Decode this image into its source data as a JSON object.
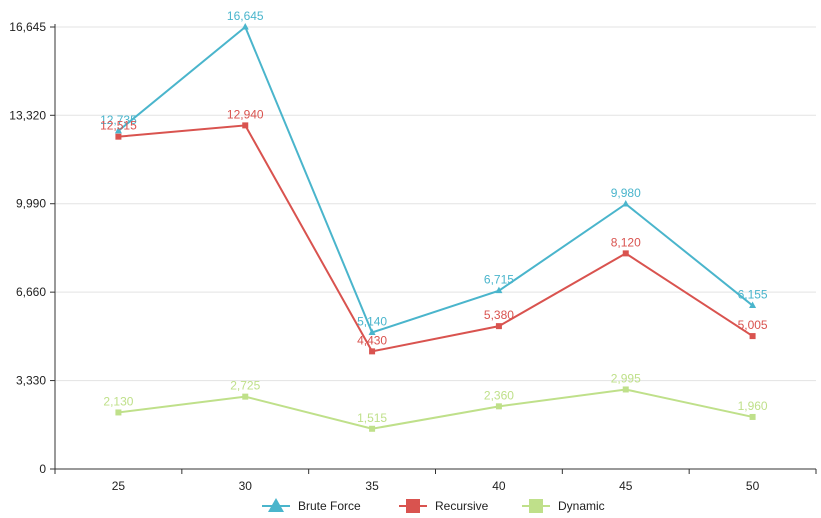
{
  "chart_data": {
    "type": "line",
    "title": "",
    "xlabel": "",
    "ylabel": "",
    "categories": [
      "25",
      "30",
      "35",
      "40",
      "45",
      "50"
    ],
    "y_ticks": [
      0,
      3330,
      6660,
      9990,
      13320,
      16645
    ],
    "y_tick_labels": [
      "0",
      "3,330",
      "6,660",
      "9,990",
      "13,320",
      "16,645"
    ],
    "ylim": [
      0,
      16645
    ],
    "grid": true,
    "legend_position": "bottom",
    "series": [
      {
        "name": "Brute Force",
        "color": "#4ab5cc",
        "marker": "triangle",
        "values": [
          12735,
          16645,
          5140,
          6715,
          9980,
          6155
        ],
        "labels": [
          "12,735",
          "16,645",
          "5,140",
          "6,715",
          "9,980",
          "6,155"
        ]
      },
      {
        "name": "Recursive",
        "color": "#d9534f",
        "marker": "square",
        "values": [
          12515,
          12940,
          4430,
          5380,
          8120,
          5005
        ],
        "labels": [
          "12,515",
          "12,940",
          "4,430",
          "5,380",
          "8,120",
          "5,005"
        ]
      },
      {
        "name": "Dynamic",
        "color": "#bfe08a",
        "marker": "square",
        "values": [
          2130,
          2725,
          1515,
          2360,
          2995,
          1960
        ],
        "labels": [
          "2,130",
          "2,725",
          "1,515",
          "2,360",
          "2,995",
          "1,960"
        ]
      }
    ]
  }
}
